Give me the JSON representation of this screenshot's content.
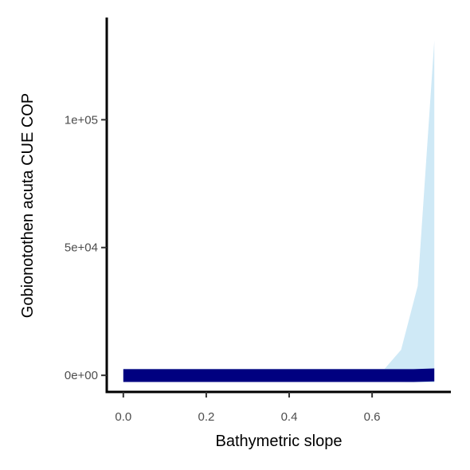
{
  "chart_data": {
    "type": "area",
    "title": "",
    "xlabel": "Bathymetric slope",
    "ylabel": "Gobionotothen acuta  CUE COP",
    "xlim": [
      -0.04,
      0.79
    ],
    "ylim": [
      -6500,
      140000
    ],
    "x_ticks": [
      0,
      0.2,
      0.4,
      0.6
    ],
    "x_tick_labels": [
      "0.0",
      "0.2",
      "0.4",
      "0.6"
    ],
    "y_ticks": [
      0,
      50000,
      100000
    ],
    "y_tick_labels": [
      "0e+00",
      "5e+04",
      "1e+05"
    ],
    "grid": false,
    "legend": "none",
    "series": [
      {
        "kind": "ribbon",
        "color": "#cfe9f6",
        "x": [
          0,
          0.1,
          0.2,
          0.3,
          0.4,
          0.5,
          0.6,
          0.63,
          0.67,
          0.71,
          0.75
        ],
        "lower": [
          -2500,
          -2500,
          -2500,
          -2500,
          -2500,
          -2500,
          -2500,
          -2500,
          -2600,
          -2700,
          -2800
        ],
        "upper": [
          2500,
          2500,
          2500,
          2500,
          2500,
          2500,
          2500,
          2500,
          10000,
          35000,
          131000
        ]
      },
      {
        "kind": "ribbon",
        "color": "#000080",
        "x": [
          0,
          0.1,
          0.2,
          0.3,
          0.4,
          0.5,
          0.6,
          0.7,
          0.75
        ],
        "lower": [
          -2600,
          -2600,
          -2600,
          -2600,
          -2600,
          -2600,
          -2600,
          -2600,
          -2400
        ],
        "upper": [
          2400,
          2400,
          2400,
          2400,
          2400,
          2400,
          2400,
          2400,
          2700
        ]
      }
    ]
  }
}
